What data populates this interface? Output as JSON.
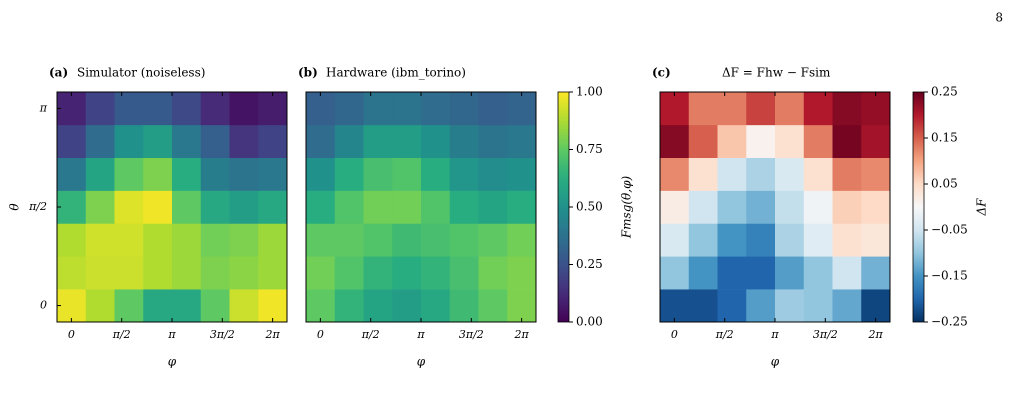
{
  "page_number": "8",
  "chart_data": [
    {
      "type": "heatmap",
      "panel_label": "(a)",
      "title": "Simulator (noiseless)",
      "xlabel": "φ",
      "ylabel": "θ",
      "cmap": "viridis",
      "zlim": [
        0,
        1
      ],
      "x": [
        0,
        0.8976,
        1.7952,
        2.6928,
        3.5904,
        4.488,
        5.3856,
        6.2832
      ],
      "y": [
        0,
        0.5236,
        1.0472,
        1.5708,
        2.0944,
        2.618,
        3.1416
      ],
      "xlim": [
        -0.4488,
        6.732
      ],
      "ylim": [
        -0.2618,
        3.4034
      ],
      "xticks": [
        0,
        {
          "value": 1.5708,
          "label": "π/2"
        },
        {
          "value": 3.1416,
          "label": "π"
        },
        {
          "value": 4.7124,
          "label": "3π/2"
        },
        {
          "value": 6.2832,
          "label": "2π"
        }
      ],
      "yticks": [
        0,
        {
          "value": 1.5708,
          "label": "π/2"
        },
        {
          "value": 3.1416,
          "label": "π"
        }
      ],
      "z": [
        [
          0.97,
          0.88,
          0.75,
          0.6,
          0.6,
          0.75,
          0.92,
          0.98
        ],
        [
          0.9,
          0.92,
          0.92,
          0.88,
          0.85,
          0.8,
          0.82,
          0.85
        ],
        [
          0.88,
          0.93,
          0.93,
          0.88,
          0.85,
          0.78,
          0.8,
          0.85
        ],
        [
          0.65,
          0.8,
          0.95,
          0.98,
          0.75,
          0.6,
          0.55,
          0.6
        ],
        [
          0.4,
          0.58,
          0.75,
          0.8,
          0.62,
          0.42,
          0.38,
          0.4
        ],
        [
          0.2,
          0.35,
          0.5,
          0.55,
          0.4,
          0.3,
          0.15,
          0.2
        ],
        [
          0.1,
          0.2,
          0.28,
          0.28,
          0.22,
          0.12,
          0.05,
          0.08
        ]
      ]
    },
    {
      "type": "heatmap",
      "panel_label": "(b)",
      "title": "Hardware (ibm_torino)",
      "xlabel": "φ",
      "cmap": "viridis",
      "zlim": [
        0,
        1
      ],
      "x": [
        0,
        0.8976,
        1.7952,
        2.6928,
        3.5904,
        4.488,
        5.3856,
        6.2832
      ],
      "y": [
        0,
        0.5236,
        1.0472,
        1.5708,
        2.0944,
        2.618,
        3.1416
      ],
      "xlim": [
        -0.4488,
        6.732
      ],
      "ylim": [
        -0.2618,
        3.4034
      ],
      "xticks": [
        0,
        {
          "value": 1.5708,
          "label": "π/2"
        },
        {
          "value": 3.1416,
          "label": "π"
        },
        {
          "value": 4.7124,
          "label": "3π/2"
        },
        {
          "value": 6.2832,
          "label": "2π"
        }
      ],
      "colorbar_label": "Fmsg(θ,φ)",
      "zticks": [
        {
          "value": 0,
          "label": "0.00"
        },
        {
          "value": 0.25,
          "label": "0.25"
        },
        {
          "value": 0.5,
          "label": "0.50"
        },
        {
          "value": 0.75,
          "label": "0.75"
        },
        {
          "value": 1,
          "label": "1.00"
        }
      ],
      "z": [
        [
          0.75,
          0.65,
          0.58,
          0.55,
          0.6,
          0.68,
          0.75,
          0.8
        ],
        [
          0.78,
          0.72,
          0.65,
          0.62,
          0.65,
          0.7,
          0.78,
          0.8
        ],
        [
          0.75,
          0.75,
          0.72,
          0.68,
          0.7,
          0.72,
          0.75,
          0.78
        ],
        [
          0.62,
          0.72,
          0.78,
          0.78,
          0.72,
          0.62,
          0.58,
          0.62
        ],
        [
          0.5,
          0.62,
          0.7,
          0.72,
          0.62,
          0.52,
          0.48,
          0.5
        ],
        [
          0.35,
          0.45,
          0.55,
          0.55,
          0.5,
          0.42,
          0.38,
          0.4
        ],
        [
          0.3,
          0.33,
          0.38,
          0.38,
          0.35,
          0.33,
          0.3,
          0.32
        ]
      ]
    },
    {
      "type": "heatmap",
      "panel_label": "(c)",
      "title": "ΔF = Fhw − Fsim",
      "xlabel": "φ",
      "cmap": "RdBu_r",
      "zlim": [
        -0.25,
        0.25
      ],
      "x": [
        0,
        0.8976,
        1.7952,
        2.6928,
        3.5904,
        4.488,
        5.3856,
        6.2832
      ],
      "y": [
        0,
        0.5236,
        1.0472,
        1.5708,
        2.0944,
        2.618,
        3.1416
      ],
      "xlim": [
        -0.4488,
        6.732
      ],
      "ylim": [
        -0.2618,
        3.4034
      ],
      "xticks": [
        0,
        {
          "value": 1.5708,
          "label": "π/2"
        },
        {
          "value": 3.1416,
          "label": "π"
        },
        {
          "value": 4.7124,
          "label": "3π/2"
        },
        {
          "value": 6.2832,
          "label": "2π"
        }
      ],
      "colorbar_label": "ΔF",
      "zticks": [
        {
          "value": -0.25,
          "label": "−0.25"
        },
        {
          "value": -0.15,
          "label": "−0.15"
        },
        {
          "value": -0.05,
          "label": "−0.05"
        },
        {
          "value": 0.05,
          "label": "0.05"
        },
        {
          "value": 0.15,
          "label": "0.15"
        },
        {
          "value": 0.25,
          "label": "0.25"
        }
      ],
      "z": [
        [
          -0.22,
          -0.22,
          -0.2,
          -0.14,
          -0.09,
          -0.1,
          -0.13,
          -0.23
        ],
        [
          -0.1,
          -0.15,
          -0.2,
          -0.2,
          -0.14,
          -0.1,
          -0.05,
          -0.12
        ],
        [
          -0.04,
          -0.1,
          -0.15,
          -0.17,
          -0.08,
          -0.03,
          0.04,
          0.03
        ],
        [
          0.02,
          -0.05,
          -0.1,
          -0.12,
          -0.06,
          -0.01,
          0.06,
          0.05
        ],
        [
          0.12,
          0.04,
          -0.05,
          -0.08,
          -0.04,
          0.04,
          0.13,
          0.12
        ],
        [
          0.23,
          0.15,
          0.07,
          0.01,
          0.04,
          0.13,
          0.24,
          0.21
        ],
        [
          0.2,
          0.13,
          0.13,
          0.17,
          0.13,
          0.2,
          0.23,
          0.22
        ]
      ]
    }
  ]
}
